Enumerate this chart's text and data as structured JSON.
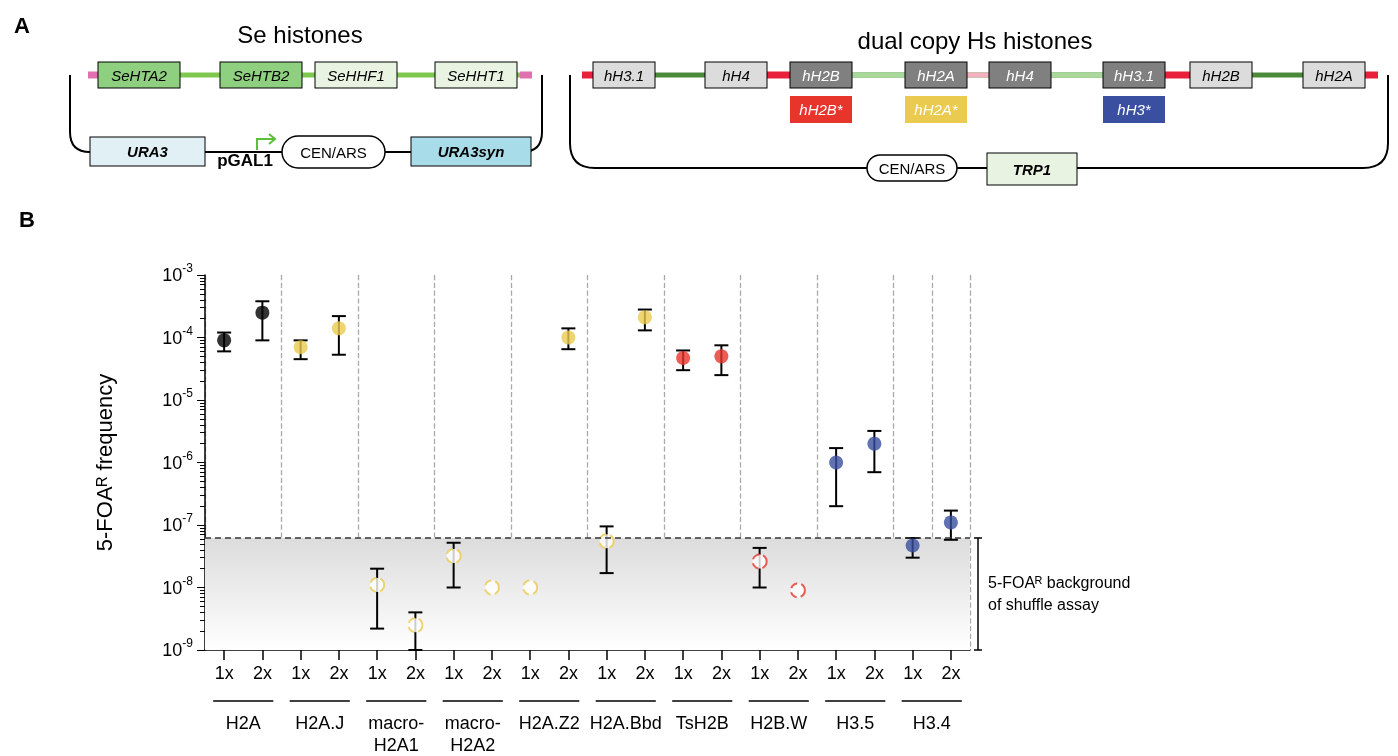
{
  "chart_data": [
    {
      "type": "other",
      "title": "A",
      "annotations": [
        "Se histones",
        "SeHTA2",
        "SeHTB2",
        "SeHHF1",
        "SeHHT1",
        "URA3",
        "pGAL1",
        "CEN/ARS",
        "URA3syn",
        "dual copy Hs histones",
        "hH3.1",
        "hH4",
        "hH2B",
        "hH2A",
        "hH4",
        "hH3.1",
        "hH2B",
        "hH2A",
        "hH2B*",
        "hH2A*",
        "hH3*",
        "CEN/ARS",
        "TRP1"
      ]
    },
    {
      "type": "scatter",
      "title": "B",
      "ylabel": "5-FOAᴿ frequency",
      "categories": [
        "1x",
        "2x",
        "1x",
        "2x",
        "1x",
        "2x",
        "1x",
        "2x",
        "1x",
        "2x",
        "1x",
        "2x",
        "1x",
        "2x",
        "1x",
        "2x",
        "1x",
        "2x",
        "1x",
        "2x"
      ],
      "annotations": [
        "H2A",
        "H2A.J",
        "macro-\nH2A1",
        "macro-\nH2A2",
        "H2A.Z2",
        "H2A.Bbd",
        "TsH2B",
        "H2B.W",
        "H3.5",
        "H3.4"
      ],
      "log": "y",
      "ylim": [
        1e-09,
        0.001
      ],
      "yticks": [
        {
          "value": 1e-09,
          "label": "10$^{-9}$"
        },
        {
          "value": 1e-08,
          "label": "10$^{-8}$"
        },
        {
          "value": 1e-07,
          "label": "10$^{-7}$"
        },
        {
          "value": 1e-06,
          "label": "10$^{-6}$"
        },
        {
          "value": 1e-05,
          "label": "10$^{-5}$"
        },
        {
          "value": 0.0001,
          "label": "10$^{-4}$"
        },
        {
          "value": 0.001,
          "label": "10$^{-3}$"
        }
      ],
      "grid": "x",
      "marker": "circle",
      "series": [
        {
          "color": "#000000",
          "values": [
            9e-05,
            0.00025,
            null,
            null,
            null,
            null,
            null,
            null,
            null,
            null,
            null,
            null,
            null,
            null,
            null,
            null,
            null,
            null,
            null,
            null
          ],
          "errors": [
            [
              6e-05,
              0.00012
            ],
            [
              9e-05,
              0.00038
            ],
            null,
            null,
            null,
            null,
            null,
            null,
            null,
            null,
            null,
            null,
            null,
            null,
            null,
            null,
            null,
            null,
            null,
            null
          ]
        },
        {
          "color": "#ebcb4f",
          "values": [
            null,
            null,
            7e-05,
            0.00014,
            null,
            null,
            null,
            null,
            null,
            0.0001,
            null,
            0.00021,
            null,
            null,
            null,
            null,
            null,
            null,
            null,
            null
          ],
          "errors": [
            null,
            null,
            [
              4.5e-05,
              9e-05
            ],
            [
              5.3e-05,
              0.00022
            ],
            null,
            null,
            null,
            null,
            null,
            [
              6.5e-05,
              0.00014
            ],
            null,
            [
              0.00013,
              0.00028
            ],
            null,
            null,
            null,
            null,
            null,
            null,
            null,
            null
          ]
        },
        {
          "color": "#ebcb4f",
          "line_style": "dashed",
          "values": [
            null,
            null,
            null,
            null,
            1.1e-08,
            2.5e-09,
            3.2e-08,
            1e-08,
            1e-08,
            null,
            5.5e-08,
            null,
            null,
            null,
            null,
            null,
            null,
            null,
            null,
            null
          ],
          "errors": [
            null,
            null,
            null,
            null,
            [
              2.2e-09,
              2e-08
            ],
            [
              1e-09,
              4e-09
            ],
            [
              1e-08,
              5.2e-08
            ],
            null,
            null,
            null,
            [
              1.7e-08,
              9.5e-08
            ],
            null,
            null,
            null,
            null,
            null,
            null,
            null,
            null,
            null
          ]
        },
        {
          "color": "#e8352c",
          "values": [
            null,
            null,
            null,
            null,
            null,
            null,
            null,
            null,
            null,
            null,
            null,
            null,
            4.7e-05,
            5e-05,
            null,
            null,
            null,
            null,
            null,
            null
          ],
          "errors": [
            null,
            null,
            null,
            null,
            null,
            null,
            null,
            null,
            null,
            null,
            null,
            null,
            [
              3e-05,
              6.2e-05
            ],
            [
              2.5e-05,
              7.5e-05
            ],
            null,
            null,
            null,
            null,
            null,
            null
          ]
        },
        {
          "color": "#e8352c",
          "line_style": "dashed",
          "values": [
            null,
            null,
            null,
            null,
            null,
            null,
            null,
            null,
            null,
            null,
            null,
            null,
            null,
            null,
            2.6e-08,
            9e-09,
            null,
            null,
            null,
            null
          ],
          "errors": [
            null,
            null,
            null,
            null,
            null,
            null,
            null,
            null,
            null,
            null,
            null,
            null,
            null,
            null,
            [
              1e-08,
              4.3e-08
            ],
            null,
            null,
            null,
            null,
            null
          ]
        },
        {
          "color": "#3a4fa0",
          "values": [
            null,
            null,
            null,
            null,
            null,
            null,
            null,
            null,
            null,
            null,
            null,
            null,
            null,
            null,
            null,
            null,
            1e-06,
            2e-06,
            4.7e-08,
            1.1e-07
          ],
          "errors": [
            null,
            null,
            null,
            null,
            null,
            null,
            null,
            null,
            null,
            null,
            null,
            null,
            null,
            null,
            null,
            null,
            [
              2e-07,
              1.7e-06
            ],
            [
              7e-07,
              3.2e-06
            ],
            [
              3e-08,
              6.2e-08
            ],
            [
              5.8e-08,
              1.7e-07
            ]
          ]
        }
      ],
      "ref_lines": [
        {
          "axis": "y",
          "value": 6.2e-08,
          "line_style": "dashed",
          "color": "#333333"
        }
      ],
      "bands": [
        {
          "axis": "y",
          "from": 1e-09,
          "to": 6.2e-08,
          "label": "5-FOAᴿ background\nof shuffle assay",
          "color": "#dcdcdc"
        }
      ]
    }
  ]
}
